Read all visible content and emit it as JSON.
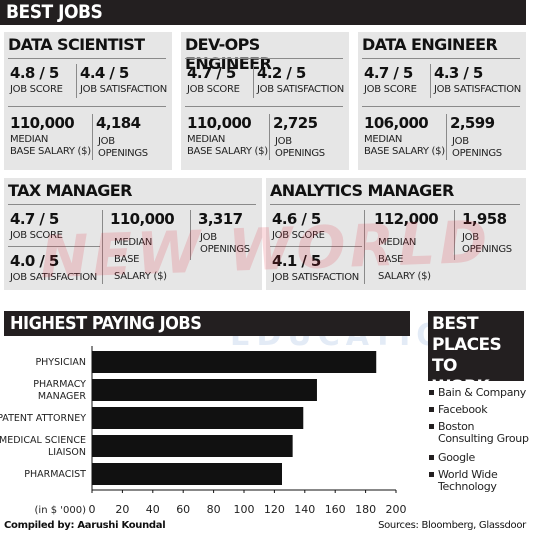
{
  "header": {
    "title": "BEST JOBS"
  },
  "jobs_top": [
    {
      "title": "DATA SCIENTIST",
      "score": "4.8 / 5",
      "score_label": "JOB SCORE",
      "satisfaction": "4.4 / 5",
      "satisfaction_label": "JOB SATISFACTION",
      "salary": "110,000",
      "salary_label": "MEDIAN\nBASE SALARY ($)",
      "openings": "4,184",
      "openings_label": "JOB\nOPENINGS"
    },
    {
      "title": "DEV-OPS ENGINEER",
      "score": "4.7 / 5",
      "score_label": "JOB SCORE",
      "satisfaction": "4.2 / 5",
      "satisfaction_label": "JOB SATISFACTION",
      "salary": "110,000",
      "salary_label": "MEDIAN\nBASE SALARY ($)",
      "openings": "2,725",
      "openings_label": "JOB\nOPENINGS"
    },
    {
      "title": "DATA ENGINEER",
      "score": "4.7 / 5",
      "score_label": "JOB SCORE",
      "satisfaction": "4.3 / 5",
      "satisfaction_label": "JOB SATISFACTION",
      "salary": "106,000",
      "salary_label": "MEDIAN\nBASE SALARY ($)",
      "openings": "2,599",
      "openings_label": "JOB\nOPENINGS"
    }
  ],
  "jobs_bottom": [
    {
      "title": "TAX MANAGER",
      "score": "4.7 / 5",
      "score_label": "JOB SCORE",
      "satisfaction": "4.0 / 5",
      "satisfaction_label": "JOB SATISFACTION",
      "salary": "110,000",
      "salary_label": "MEDIAN\nBASE\nSALARY ($)",
      "openings": "3,317",
      "openings_label": "JOB\nOPENINGS"
    },
    {
      "title": "ANALYTICS MANAGER",
      "score": "4.6 / 5",
      "score_label": "JOB SCORE",
      "satisfaction": "4.1 / 5",
      "satisfaction_label": "JOB SATISFACTION",
      "salary": "112,000",
      "salary_label": "MEDIAN\nBASE\nSALARY ($)",
      "openings": "1,958",
      "openings_label": "JOB\nOPENINGS"
    }
  ],
  "watermark": {
    "line1": "NEW WORLD",
    "line2": "EDUCATION"
  },
  "chart_data": {
    "type": "bar",
    "title": "HIGHEST PAYING JOBS",
    "orientation": "horizontal",
    "categories": [
      "PHYSICIAN",
      "PHARMACY\nMANAGER",
      "PATENT ATTORNEY",
      "MEDICAL SCIENCE\nLIAISON",
      "PHARMACIST"
    ],
    "values": [
      187,
      148,
      139,
      132,
      125
    ],
    "xlabel": "(in $ '000)",
    "xlim": [
      0,
      200
    ],
    "xticks": [
      0,
      20,
      40,
      60,
      80,
      100,
      120,
      140,
      160,
      180,
      200
    ],
    "bar_color": "#111111",
    "grid": false
  },
  "best_places": {
    "title": "BEST\nPLACES TO\nWORK",
    "items": [
      "Bain & Company",
      "Facebook",
      "Boston\nConsulting Group",
      "Google",
      "World Wide\nTechnology"
    ]
  },
  "footer": {
    "compiled": "Compiled by: Aarushi Koundal",
    "sources": "Sources: Bloomberg, Glassdoor"
  }
}
